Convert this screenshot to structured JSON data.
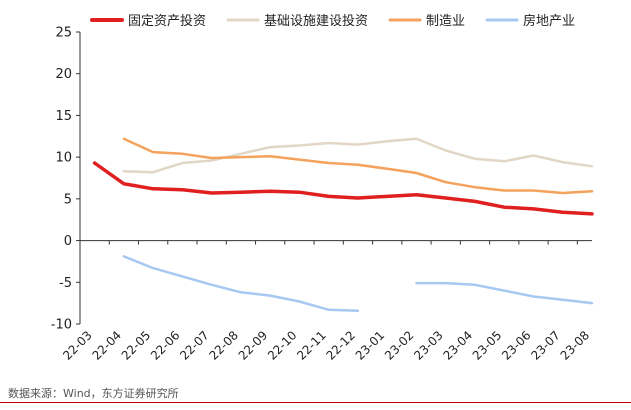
{
  "chart_data": {
    "type": "line",
    "title": "",
    "xlabel": "",
    "ylabel": "",
    "ylim": [
      -10,
      25
    ],
    "yticks": [
      -10,
      -5,
      0,
      5,
      10,
      15,
      20,
      25
    ],
    "categories": [
      "22-03",
      "22-04",
      "22-05",
      "22-06",
      "22-07",
      "22-08",
      "22-09",
      "22-10",
      "22-11",
      "22-12",
      "23-01",
      "23-02",
      "23-03",
      "23-04",
      "23-05",
      "23-06",
      "23-07",
      "23-08"
    ],
    "series": [
      {
        "name": "固定资产投资",
        "color": "#e02020",
        "width": 3.5,
        "values": [
          9.3,
          6.8,
          6.2,
          6.1,
          5.7,
          5.8,
          5.9,
          5.8,
          5.3,
          5.1,
          5.3,
          5.5,
          5.1,
          4.7,
          4.0,
          3.8,
          3.4,
          3.2
        ]
      },
      {
        "name": "基础设施建设投资",
        "color": "#e2d6c6",
        "width": 2.5,
        "values": [
          null,
          8.3,
          8.2,
          9.3,
          9.6,
          10.4,
          11.2,
          11.4,
          11.7,
          11.5,
          11.9,
          12.2,
          10.8,
          9.8,
          9.5,
          10.2,
          9.4,
          8.9
        ]
      },
      {
        "name": "制造业",
        "color": "#f4a25c",
        "width": 2.5,
        "values": [
          null,
          12.2,
          10.6,
          10.4,
          9.9,
          10.0,
          10.1,
          9.7,
          9.3,
          9.1,
          8.6,
          8.1,
          7.0,
          6.4,
          6.0,
          6.0,
          5.7,
          5.9
        ]
      },
      {
        "name": "房地产业",
        "color": "#a7c8f2",
        "width": 2.5,
        "values": [
          null,
          -1.9,
          -3.3,
          -4.3,
          -5.3,
          -6.2,
          -6.6,
          -7.3,
          -8.3,
          -8.4,
          null,
          -5.1,
          -5.1,
          -5.3,
          -6.0,
          -6.7,
          -7.1,
          -7.5
        ]
      }
    ]
  },
  "source": "数据来源：Wind，东方证券研究所"
}
